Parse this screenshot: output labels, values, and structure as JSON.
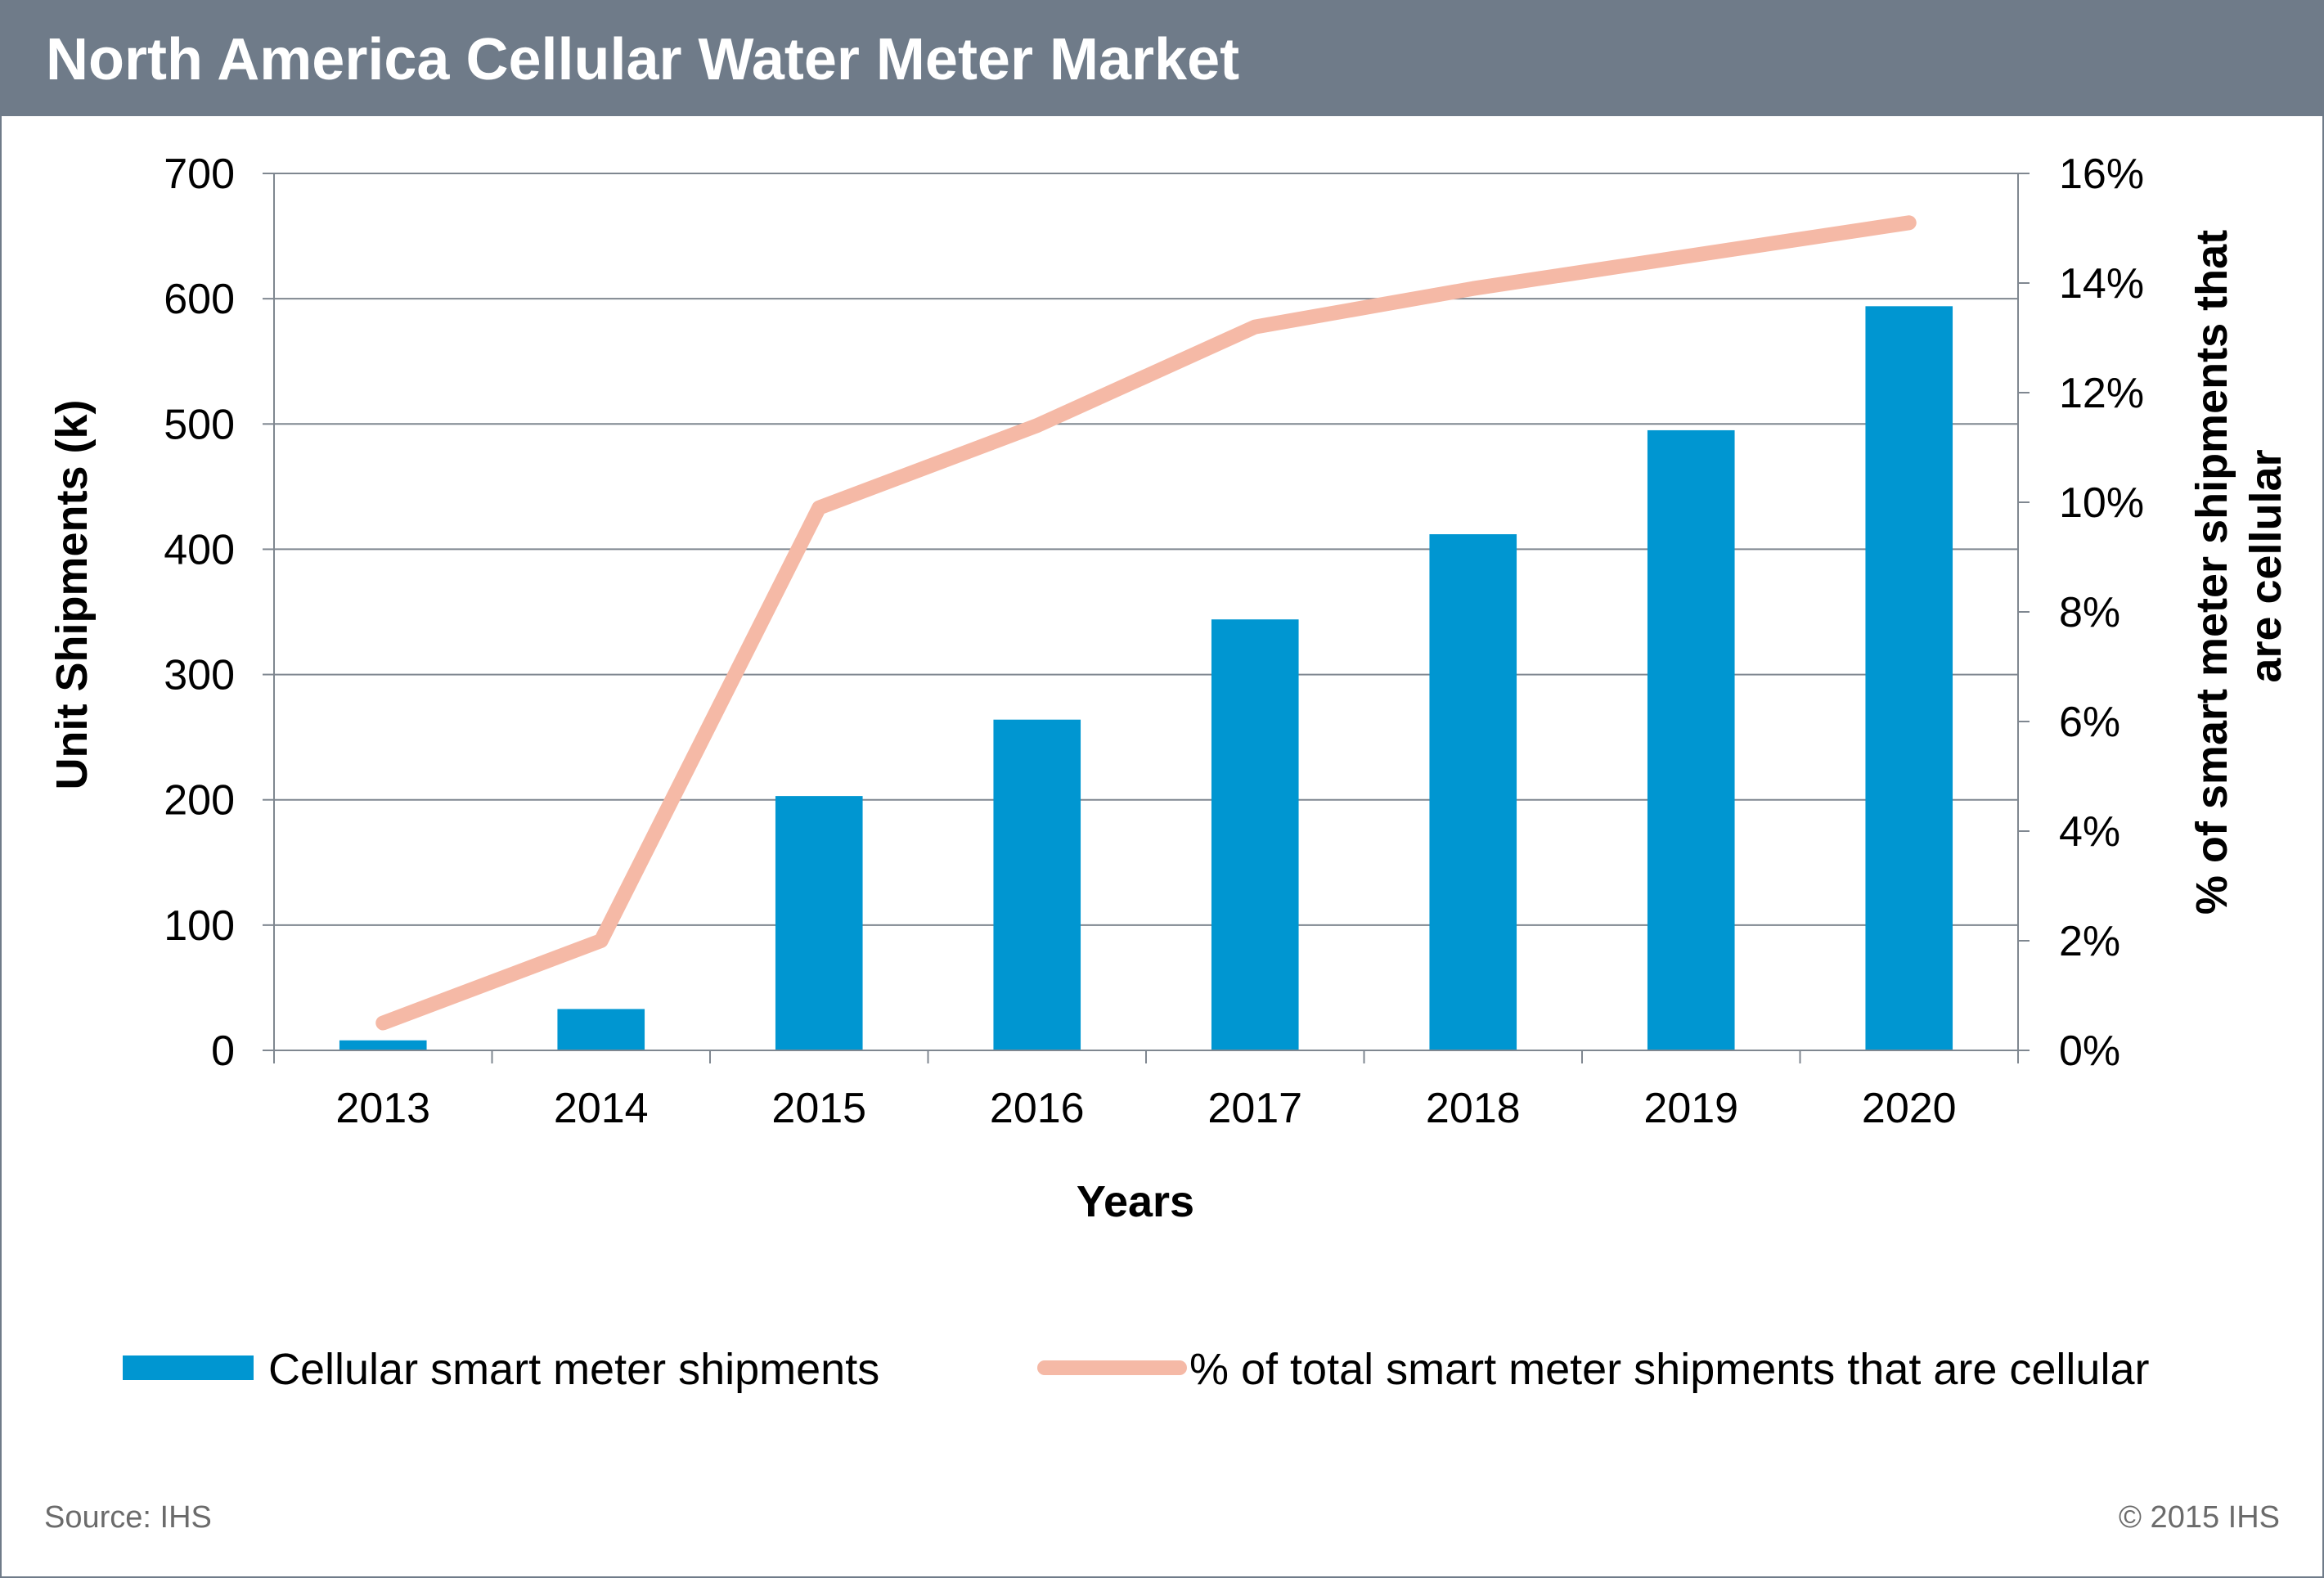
{
  "header": {
    "title": "North America Cellular Water Meter Market"
  },
  "footer": {
    "source": "Source: IHS",
    "copyright": "© 2015 IHS"
  },
  "colors": {
    "bar": "#0096d1",
    "line": "#f5b9a6",
    "header_bg": "#6f7b89",
    "grid": "#7f8790"
  },
  "chart_data": {
    "type": "bar",
    "title": "North America Cellular Water Meter Market",
    "xlabel": "Years",
    "ylabel": "Unit Shipments (k)",
    "y2label": "% of smart meter shipments that are cellular",
    "categories": [
      "2013",
      "2014",
      "2015",
      "2016",
      "2017",
      "2018",
      "2019",
      "2020"
    ],
    "ylim": [
      0,
      700
    ],
    "yticks": [
      0,
      100,
      200,
      300,
      400,
      500,
      600,
      700
    ],
    "y2lim": [
      0,
      16
    ],
    "y2ticks": [
      "0%",
      "2%",
      "4%",
      "6%",
      "8%",
      "10%",
      "12%",
      "14%",
      "16%"
    ],
    "grid": true,
    "legend_position": "bottom",
    "series": [
      {
        "name": "Cellular smart meter shipments",
        "type": "bar",
        "axis": "left",
        "values": [
          8,
          33,
          203,
          264,
          344,
          412,
          495,
          594
        ]
      },
      {
        "name": "% of total smart meter shipments that are cellular",
        "type": "line",
        "axis": "right",
        "values": [
          0.5,
          2.0,
          9.9,
          11.4,
          13.2,
          13.9,
          14.5,
          15.1
        ]
      }
    ]
  }
}
